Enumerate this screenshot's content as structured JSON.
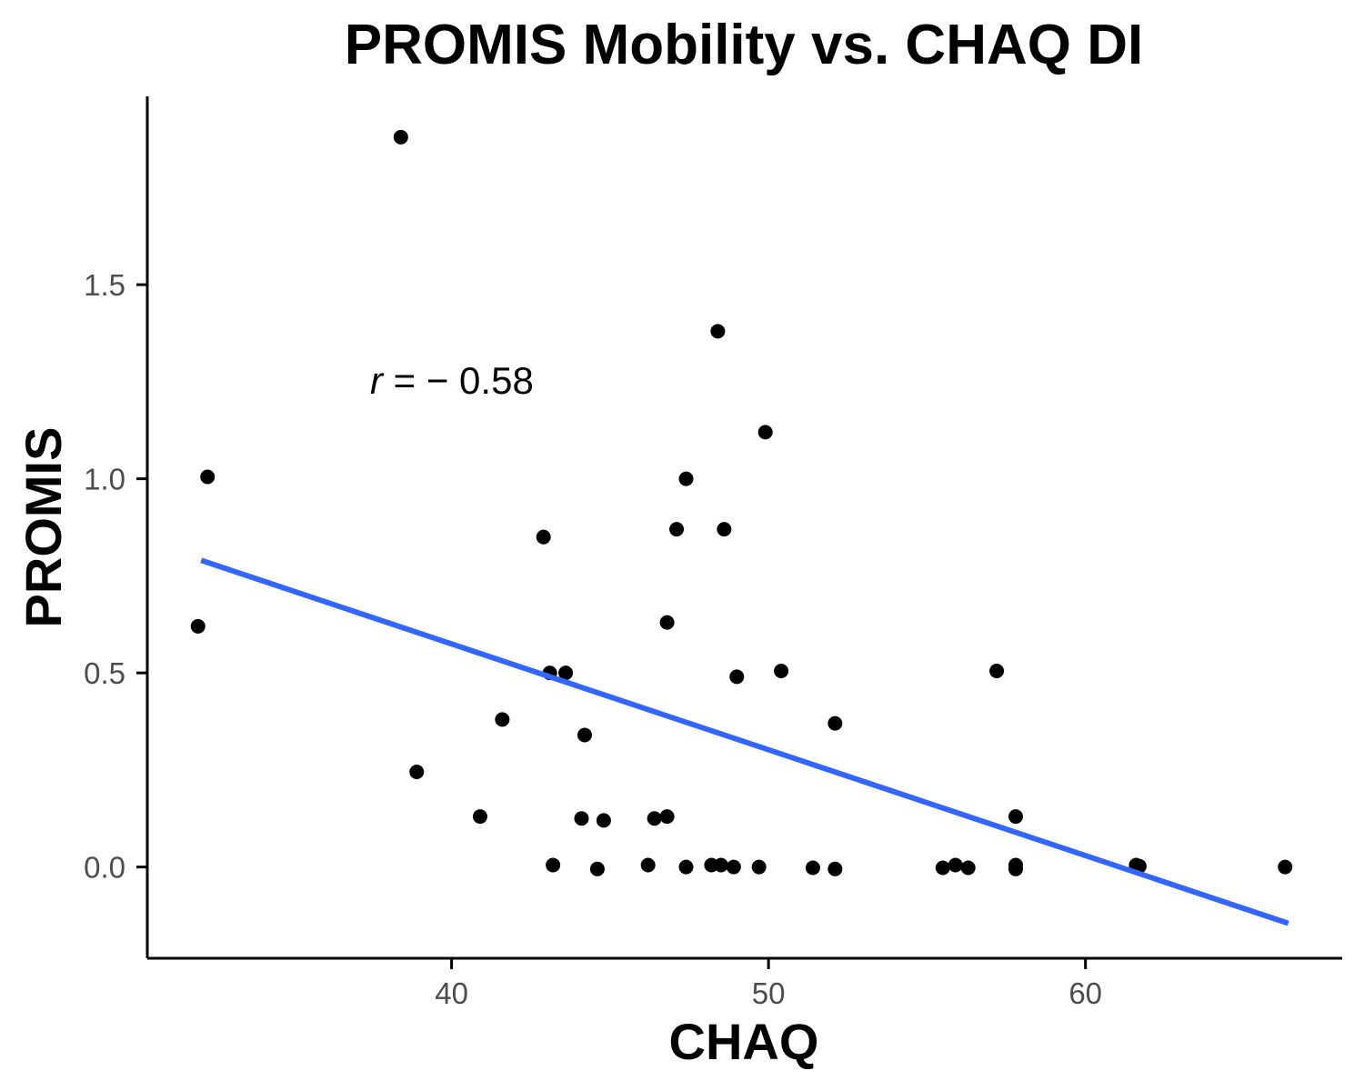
{
  "chart_data": {
    "type": "scatter",
    "title": "PROMIS Mobility vs. CHAQ DI",
    "xlabel": "CHAQ",
    "ylabel": "PROMIS",
    "xlim": [
      30.4,
      68.1
    ],
    "ylim": [
      -0.235,
      1.985
    ],
    "x_ticks": [
      40,
      50,
      60
    ],
    "y_ticks": [
      0.0,
      0.5,
      1.0,
      1.5
    ],
    "x_tick_labels": [
      "40",
      "50",
      "60"
    ],
    "y_tick_labels": [
      "0.0",
      "0.5",
      "1.0",
      "1.5"
    ],
    "grid": false,
    "legend": "none",
    "point_color": "#000000",
    "trend_color": "#3366FF",
    "annotation": {
      "r_symbol": "r",
      "rest": " = − 0.58"
    },
    "trendline": {
      "type": "linear",
      "points": [
        [
          32.1,
          0.79
        ],
        [
          66.4,
          -0.145
        ]
      ]
    },
    "points": [
      [
        38.4,
        1.88
      ],
      [
        32.3,
        1.005
      ],
      [
        32.0,
        0.62
      ],
      [
        48.4,
        1.38
      ],
      [
        49.9,
        1.12
      ],
      [
        47.4,
        1.0
      ],
      [
        42.9,
        0.85
      ],
      [
        47.1,
        0.87
      ],
      [
        48.6,
        0.87
      ],
      [
        46.8,
        0.63
      ],
      [
        43.1,
        0.5
      ],
      [
        43.6,
        0.5
      ],
      [
        49.0,
        0.49
      ],
      [
        50.4,
        0.505
      ],
      [
        57.2,
        0.505
      ],
      [
        41.6,
        0.38
      ],
      [
        52.1,
        0.37
      ],
      [
        44.2,
        0.34
      ],
      [
        38.9,
        0.245
      ],
      [
        40.9,
        0.13
      ],
      [
        44.1,
        0.125
      ],
      [
        44.8,
        0.12
      ],
      [
        46.4,
        0.125
      ],
      [
        46.8,
        0.13
      ],
      [
        57.8,
        0.13
      ],
      [
        43.2,
        0.005
      ],
      [
        44.6,
        -0.005
      ],
      [
        46.2,
        0.005
      ],
      [
        47.4,
        0.0
      ],
      [
        48.2,
        0.005
      ],
      [
        48.5,
        0.005
      ],
      [
        48.9,
        0.0
      ],
      [
        49.7,
        0.0
      ],
      [
        51.4,
        -0.002
      ],
      [
        52.1,
        -0.005
      ],
      [
        55.5,
        -0.002
      ],
      [
        55.9,
        0.005
      ],
      [
        56.3,
        -0.002
      ],
      [
        57.8,
        0.005
      ],
      [
        57.8,
        -0.005
      ],
      [
        61.6,
        0.005
      ],
      [
        61.7,
        0.002
      ],
      [
        66.3,
        0.0
      ]
    ]
  }
}
